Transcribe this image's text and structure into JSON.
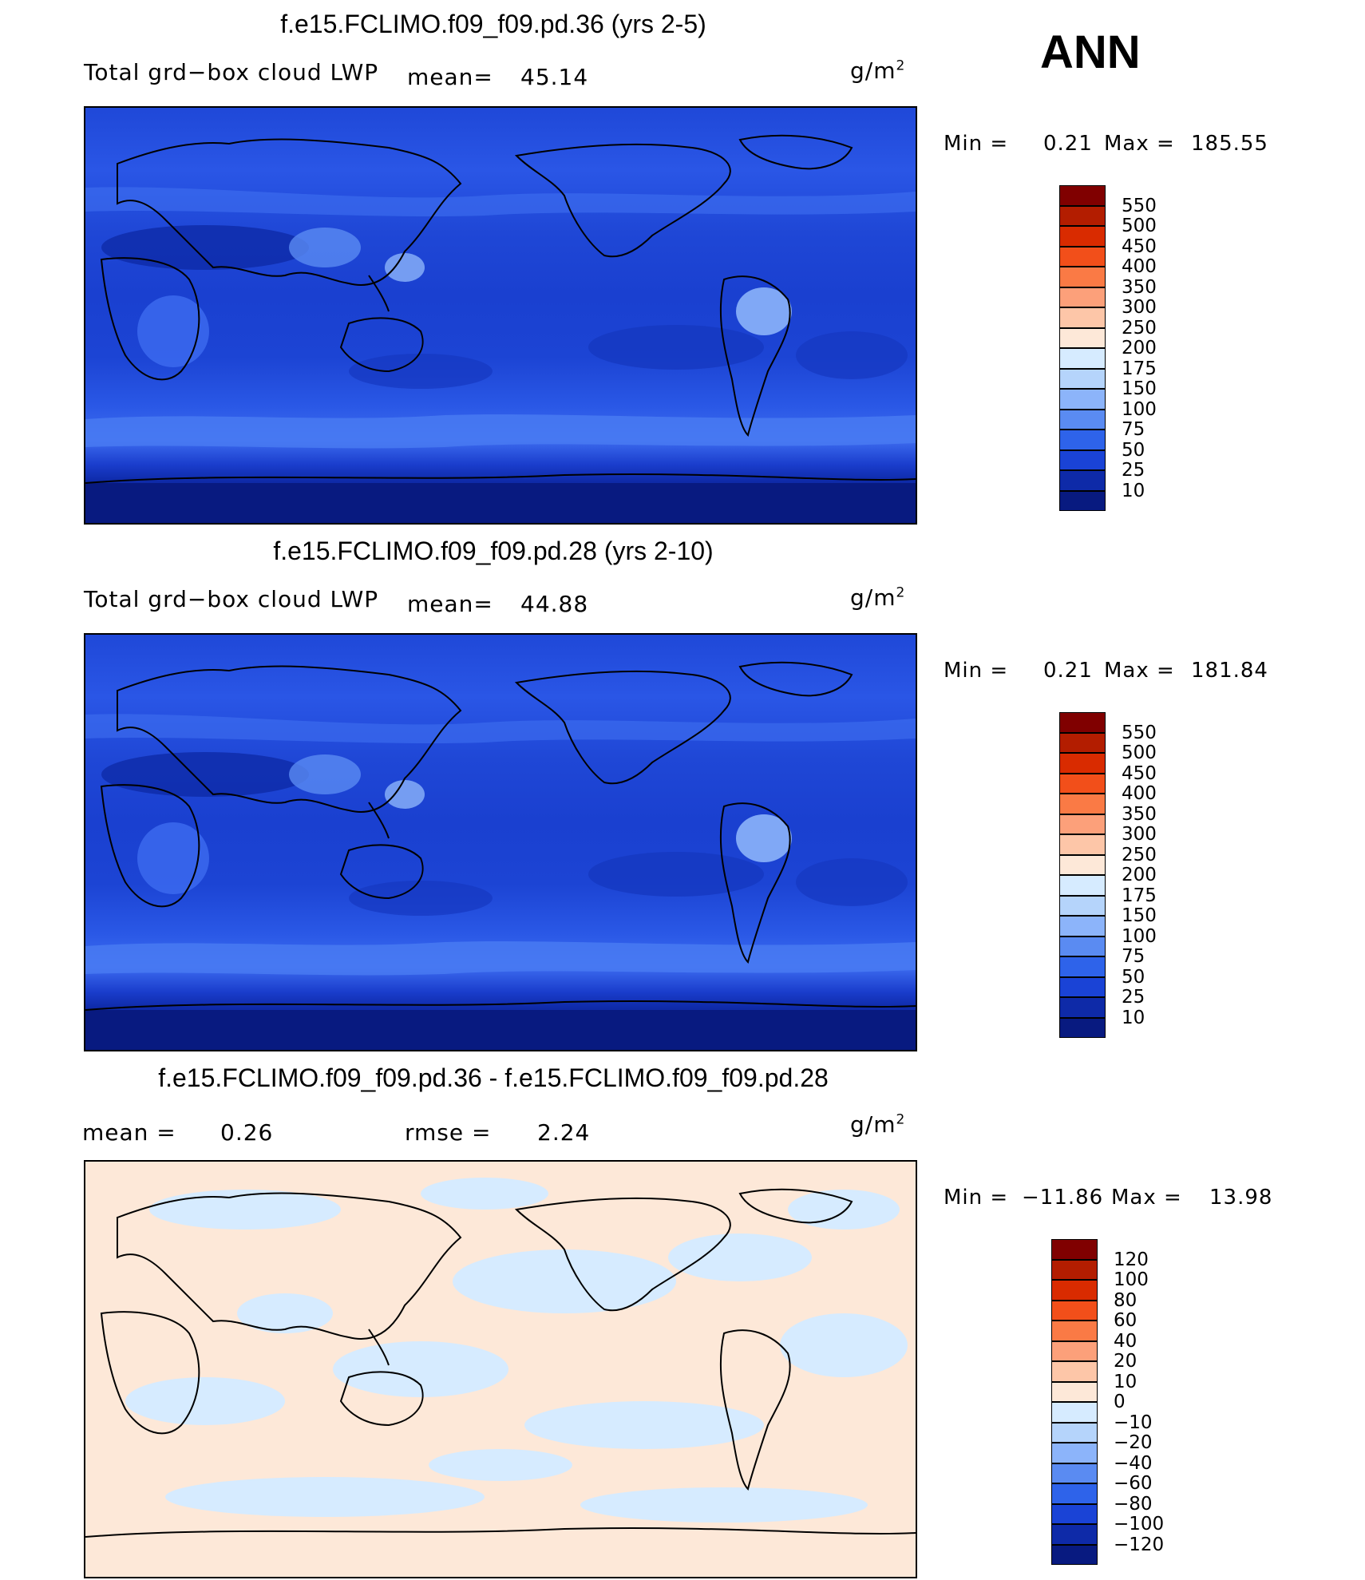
{
  "season": "ANN",
  "units_label": "g/m",
  "units_sup": "2",
  "panels": [
    {
      "title": "f.e15.FCLIMO.f09_f09.pd.36 (yrs 2-5)",
      "variable": "Total grd−box cloud LWP",
      "mean_label": "mean=",
      "mean_value": "45.14",
      "minmax_min_label": "Min  =",
      "min_value": "0.21",
      "minmax_max_label": "Max  =",
      "max_value": "185.55",
      "type": "field"
    },
    {
      "title": "f.e15.FCLIMO.f09_f09.pd.28 (yrs 2-10)",
      "variable": "Total grd−box cloud LWP",
      "mean_label": "mean=",
      "mean_value": "44.88",
      "minmax_min_label": "Min  =",
      "min_value": "0.21",
      "minmax_max_label": "Max  =",
      "max_value": "181.84",
      "type": "field"
    },
    {
      "title": "f.e15.FCLIMO.f09_f09.pd.36 - f.e15.FCLIMO.f09_f09.pd.28",
      "mean_label": "mean  =",
      "mean_value": "0.26",
      "rmse_label": "rmse  =",
      "rmse_value": "2.24",
      "minmax_min_label": "Min  =",
      "min_value": "−11.86",
      "minmax_max_label": "Max  =",
      "max_value": "13.98",
      "type": "diff"
    }
  ],
  "colorbars": {
    "field": {
      "labels": [
        "550",
        "500",
        "450",
        "400",
        "350",
        "300",
        "250",
        "200",
        "175",
        "150",
        "100",
        "75",
        "50",
        "25",
        "10"
      ],
      "colors": [
        "#800000",
        "#b31d00",
        "#d92b00",
        "#f24f1a",
        "#fa7a45",
        "#fca07a",
        "#fdc6a8",
        "#fde8d8",
        "#d6ebff",
        "#b5d4fb",
        "#8cb4fa",
        "#5a8bf2",
        "#2e63ea",
        "#1a43d6",
        "#0e2aa8",
        "#081a80"
      ]
    },
    "diff": {
      "labels": [
        "120",
        "100",
        "80",
        "60",
        "40",
        "20",
        "10",
        "0",
        "−10",
        "−20",
        "−40",
        "−60",
        "−80",
        "−100",
        "−120"
      ],
      "colors": [
        "#800000",
        "#b31d00",
        "#d92b00",
        "#f24f1a",
        "#fa7a45",
        "#fca07a",
        "#fdc6a8",
        "#fde8d8",
        "#d6ebff",
        "#b5d4fb",
        "#8cb4fa",
        "#5a8bf2",
        "#2e63ea",
        "#1a43d6",
        "#0e2aa8",
        "#081a80"
      ]
    }
  }
}
